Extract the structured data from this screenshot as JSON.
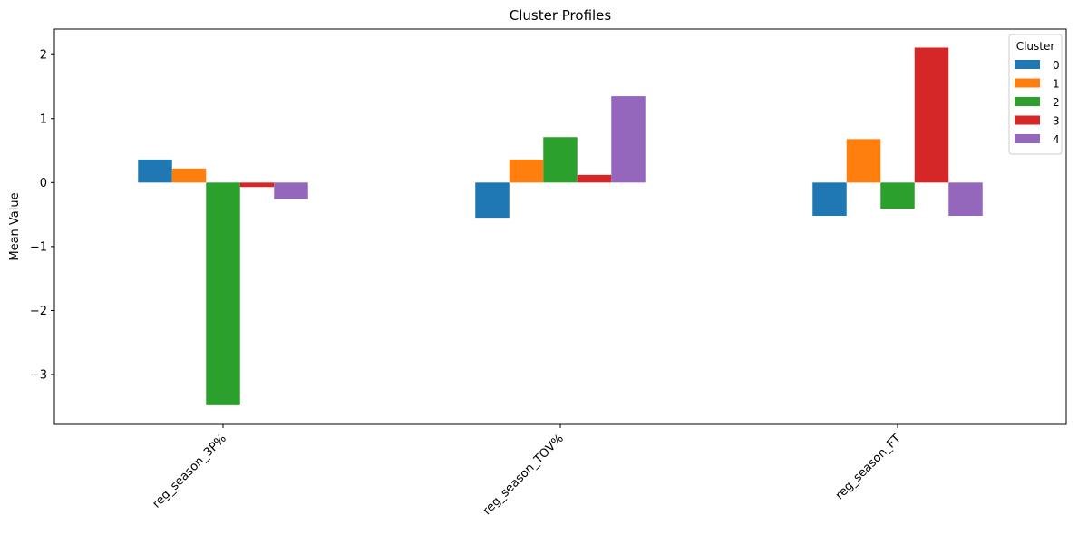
{
  "chart_data": {
    "type": "bar",
    "title": "Cluster Profiles",
    "xlabel": "",
    "ylabel": "Mean Value",
    "categories": [
      "reg_season_3P%",
      "reg_season_TOV%",
      "reg_season_FT"
    ],
    "ylim": [
      -3.78,
      2.4
    ],
    "yticks": [
      -3,
      -2,
      -1,
      0,
      1,
      2
    ],
    "ytick_labels": [
      "−3",
      "−2",
      "−1",
      "0",
      "1",
      "2"
    ],
    "legend": {
      "title": "Cluster",
      "placement": "top-right"
    },
    "series": [
      {
        "name": "0",
        "color": "#1f77b4",
        "values": [
          0.36,
          -0.55,
          -0.52
        ]
      },
      {
        "name": "1",
        "color": "#ff7f0e",
        "values": [
          0.22,
          0.36,
          0.68
        ]
      },
      {
        "name": "2",
        "color": "#2ca02c",
        "values": [
          -3.48,
          0.71,
          -0.41
        ]
      },
      {
        "name": "3",
        "color": "#d62728",
        "values": [
          -0.07,
          0.12,
          2.11
        ]
      },
      {
        "name": "4",
        "color": "#9467bd",
        "values": [
          -0.26,
          1.35,
          -0.52
        ]
      }
    ]
  }
}
